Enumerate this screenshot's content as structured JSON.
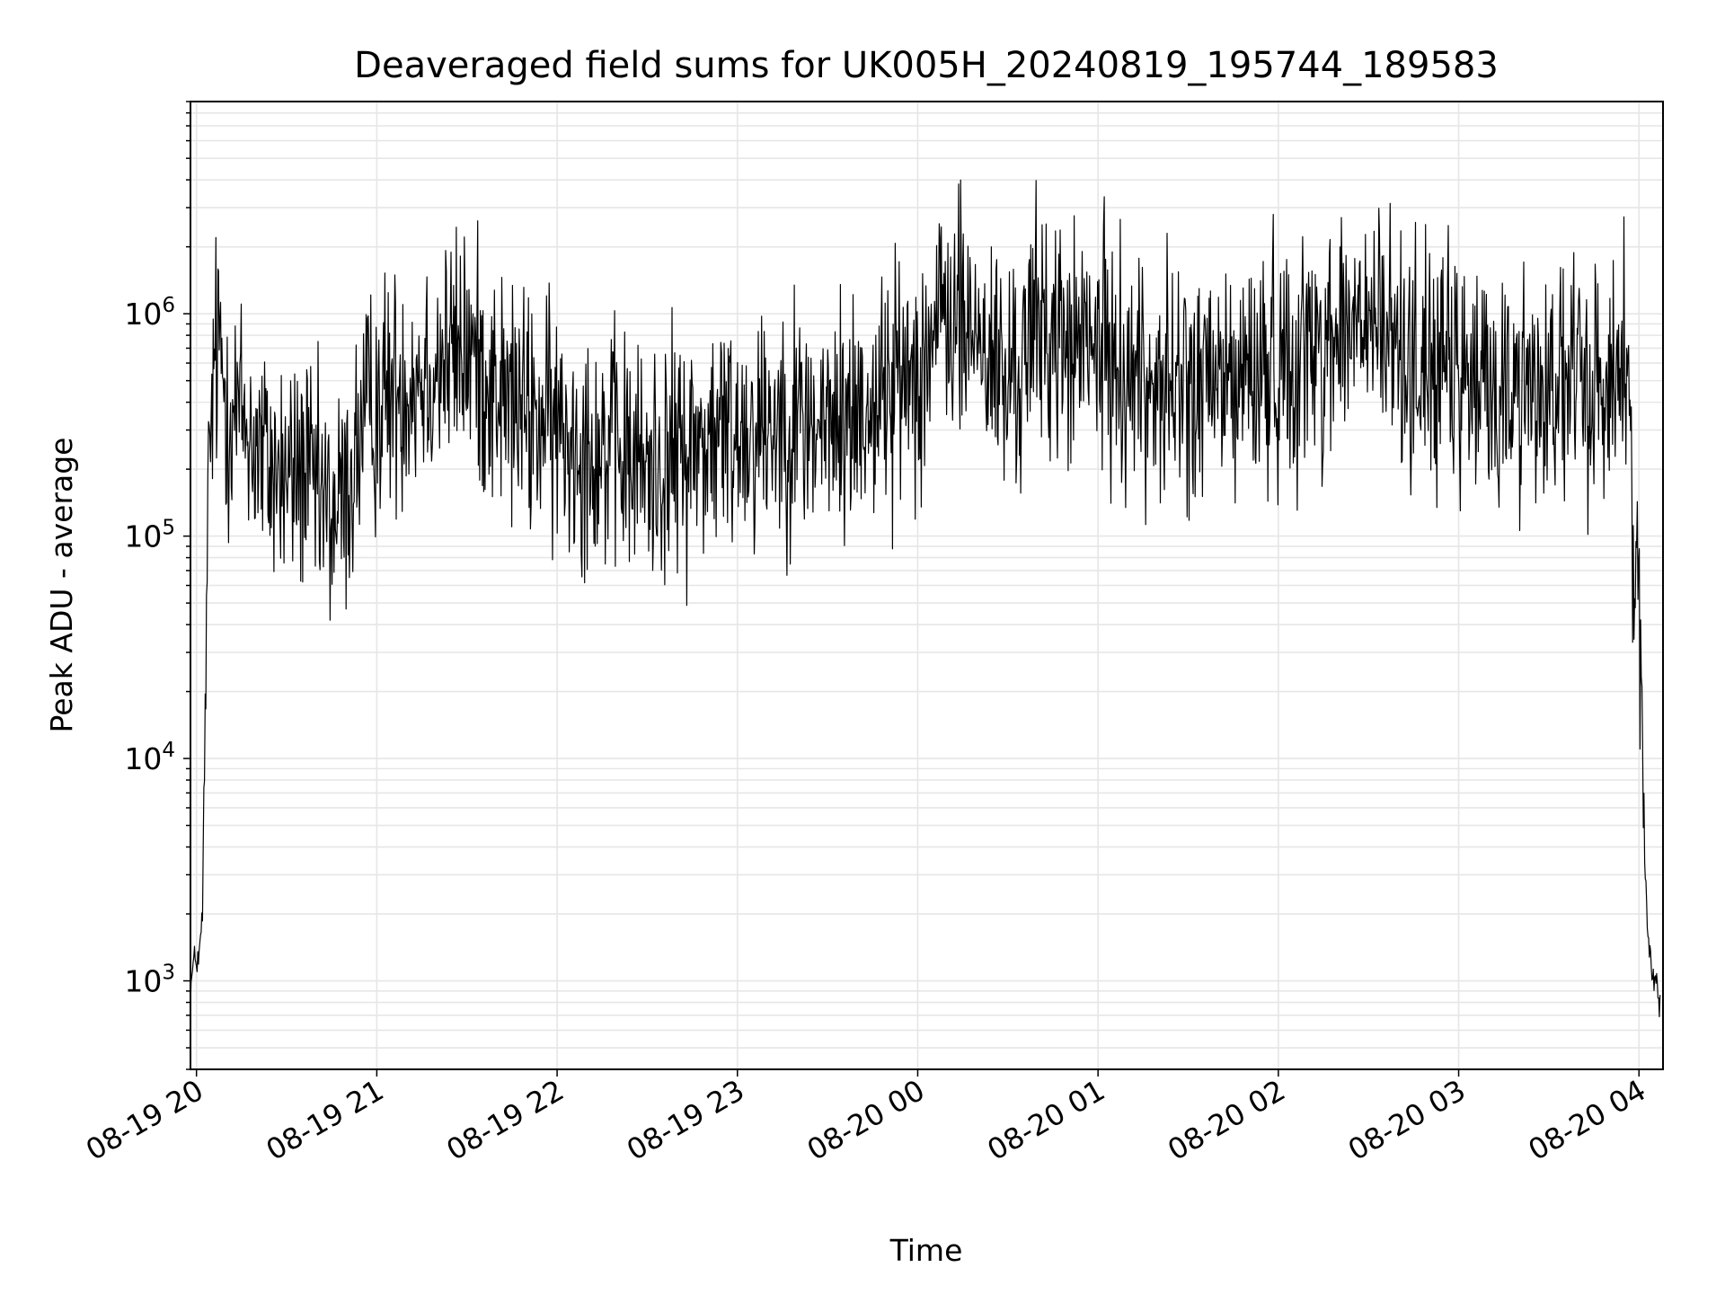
{
  "chart_data": {
    "type": "line",
    "title": "Deaveraged field sums for UK005H_20240819_195744_189583",
    "xlabel": "Time",
    "ylabel": "Peak ADU - average",
    "y_scale": "log",
    "ylim": [
      400,
      9000000
    ],
    "xlim": [
      "2024-08-19T19:58",
      "2024-08-20T04:08"
    ],
    "grid": true,
    "line_color": "#000000",
    "grid_color": "#e6e6e6",
    "x_ticks": [
      {
        "t": "2024-08-19T20:00",
        "label": "08-19 20"
      },
      {
        "t": "2024-08-19T21:00",
        "label": "08-19 21"
      },
      {
        "t": "2024-08-19T22:00",
        "label": "08-19 22"
      },
      {
        "t": "2024-08-19T23:00",
        "label": "08-19 23"
      },
      {
        "t": "2024-08-20T00:00",
        "label": "08-20 00"
      },
      {
        "t": "2024-08-20T01:00",
        "label": "08-20 01"
      },
      {
        "t": "2024-08-20T02:00",
        "label": "08-20 02"
      },
      {
        "t": "2024-08-20T03:00",
        "label": "08-20 03"
      },
      {
        "t": "2024-08-20T04:00",
        "label": "08-20 04"
      }
    ],
    "y_ticks": [
      {
        "value": 1000,
        "base": "10",
        "exp": "3"
      },
      {
        "value": 10000,
        "base": "10",
        "exp": "4"
      },
      {
        "value": 100000,
        "base": "10",
        "exp": "5"
      },
      {
        "value": 1000000,
        "base": "10",
        "exp": "6"
      }
    ],
    "series": [
      {
        "x": [
          "2024-08-19T19:58",
          "2024-08-19T19:59",
          "2024-08-19T20:01",
          "2024-08-19T20:02",
          "2024-08-19T20:03",
          "2024-08-19T20:04",
          "2024-08-19T20:05",
          "2024-08-19T20:06",
          "2024-08-19T20:08",
          "2024-08-19T20:10",
          "2024-08-19T20:15",
          "2024-08-19T20:20",
          "2024-08-19T20:25",
          "2024-08-19T20:30",
          "2024-08-19T20:35",
          "2024-08-19T20:40",
          "2024-08-19T20:45",
          "2024-08-19T20:50",
          "2024-08-19T20:55",
          "2024-08-19T21:00",
          "2024-08-19T21:10",
          "2024-08-19T21:20",
          "2024-08-19T21:30",
          "2024-08-19T21:40",
          "2024-08-19T21:50",
          "2024-08-19T22:00",
          "2024-08-19T22:15",
          "2024-08-19T22:30",
          "2024-08-19T22:45",
          "2024-08-19T23:00",
          "2024-08-19T23:15",
          "2024-08-19T23:30",
          "2024-08-19T23:45",
          "2024-08-20T00:00",
          "2024-08-20T00:10",
          "2024-08-20T00:20",
          "2024-08-20T00:30",
          "2024-08-20T00:40",
          "2024-08-20T00:50",
          "2024-08-20T01:00",
          "2024-08-20T01:15",
          "2024-08-20T01:30",
          "2024-08-20T01:45",
          "2024-08-20T02:00",
          "2024-08-20T02:10",
          "2024-08-20T02:20",
          "2024-08-20T02:30",
          "2024-08-20T02:40",
          "2024-08-20T02:50",
          "2024-08-20T03:00",
          "2024-08-20T03:15",
          "2024-08-20T03:30",
          "2024-08-20T03:45",
          "2024-08-20T03:55",
          "2024-08-20T03:59",
          "2024-08-20T04:00",
          "2024-08-20T04:01",
          "2024-08-20T04:02",
          "2024-08-20T04:03",
          "2024-08-20T04:04",
          "2024-08-20T04:05",
          "2024-08-20T04:06",
          "2024-08-20T04:07"
        ],
        "y": [
          900,
          1200,
          1300,
          2000,
          20000,
          150000,
          350000,
          600000,
          700000,
          400000,
          350000,
          250000,
          200000,
          180000,
          200000,
          150000,
          120000,
          150000,
          300000,
          400000,
          500000,
          600000,
          700000,
          450000,
          350000,
          300000,
          250000,
          200000,
          250000,
          300000,
          350000,
          300000,
          400000,
          600000,
          1000000,
          800000,
          450000,
          900000,
          700000,
          700000,
          500000,
          450000,
          500000,
          600000,
          700000,
          800000,
          900000,
          700000,
          600000,
          500000,
          450000,
          500000,
          450000,
          600000,
          100000,
          70000,
          15000,
          3000,
          1500,
          1200,
          1000,
          1100,
          800
        ]
      }
    ]
  }
}
